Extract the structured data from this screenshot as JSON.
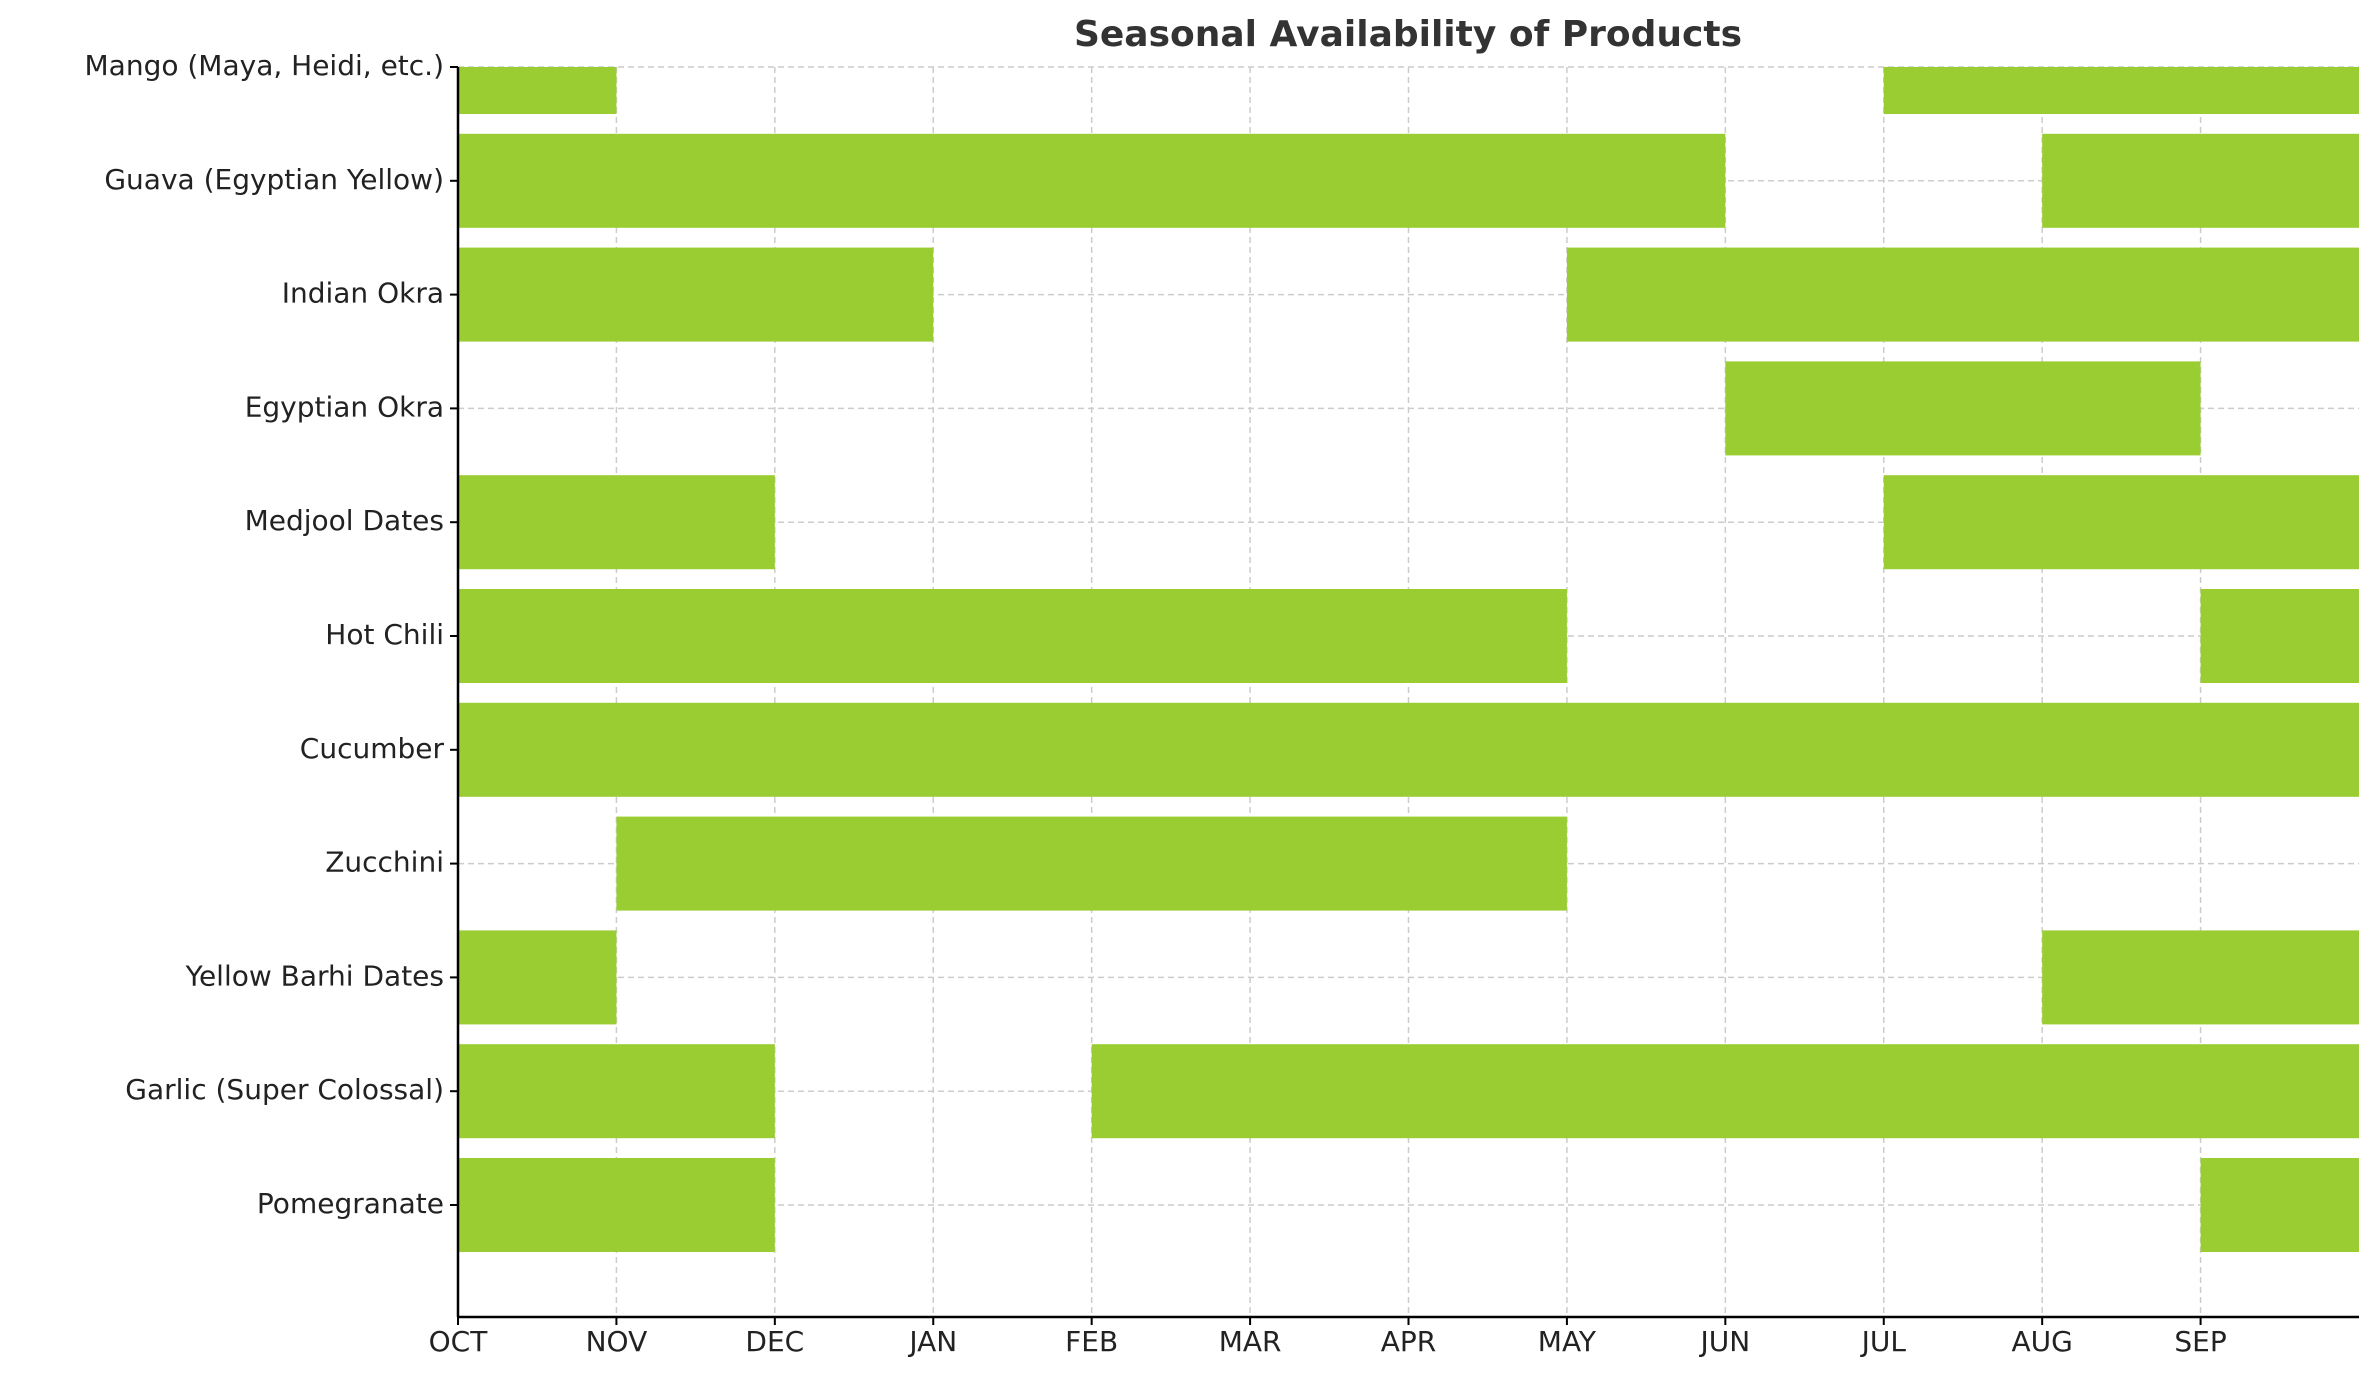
{
  "chart_data": {
    "type": "gantt",
    "title": "Seasonal Availability of Products",
    "color": "#9acd32",
    "grid": true,
    "xlim": [
      0,
      12
    ],
    "xticks": [
      {
        "value": 0,
        "label": "OCT"
      },
      {
        "value": 1,
        "label": "NOV"
      },
      {
        "value": 2,
        "label": "DEC"
      },
      {
        "value": 3,
        "label": "JAN"
      },
      {
        "value": 4,
        "label": "FEB"
      },
      {
        "value": 5,
        "label": "MAR"
      },
      {
        "value": 6,
        "label": "APR"
      },
      {
        "value": 7,
        "label": "MAY"
      },
      {
        "value": 8,
        "label": "JUN"
      },
      {
        "value": 9,
        "label": "JUL"
      },
      {
        "value": 10,
        "label": "AUG"
      },
      {
        "value": 11,
        "label": "SEP"
      }
    ],
    "rows": [
      {
        "name": "Mango (Maya, Heidi, etc.)",
        "periods": [
          [
            0,
            1
          ],
          [
            9,
            12
          ]
        ]
      },
      {
        "name": "Guava (Egyptian Yellow)",
        "periods": [
          [
            0,
            8
          ],
          [
            10,
            12
          ]
        ]
      },
      {
        "name": "Indian Okra",
        "periods": [
          [
            0,
            3
          ],
          [
            7,
            12
          ]
        ]
      },
      {
        "name": "Egyptian Okra",
        "periods": [
          [
            8,
            11
          ]
        ]
      },
      {
        "name": "Medjool Dates",
        "periods": [
          [
            0,
            2
          ],
          [
            9,
            12
          ]
        ]
      },
      {
        "name": "Hot Chili",
        "periods": [
          [
            0,
            7
          ],
          [
            11,
            12
          ]
        ]
      },
      {
        "name": "Cucumber",
        "periods": [
          [
            0,
            12
          ]
        ]
      },
      {
        "name": "Zucchini",
        "periods": [
          [
            1,
            7
          ]
        ]
      },
      {
        "name": "Yellow Barhi Dates",
        "periods": [
          [
            0,
            1
          ],
          [
            10,
            12
          ]
        ]
      },
      {
        "name": "Garlic (Super Colossal)",
        "periods": [
          [
            0,
            2
          ],
          [
            4,
            12
          ]
        ]
      },
      {
        "name": "Pomegranate",
        "periods": [
          [
            0,
            2
          ],
          [
            11,
            12
          ]
        ]
      }
    ]
  }
}
